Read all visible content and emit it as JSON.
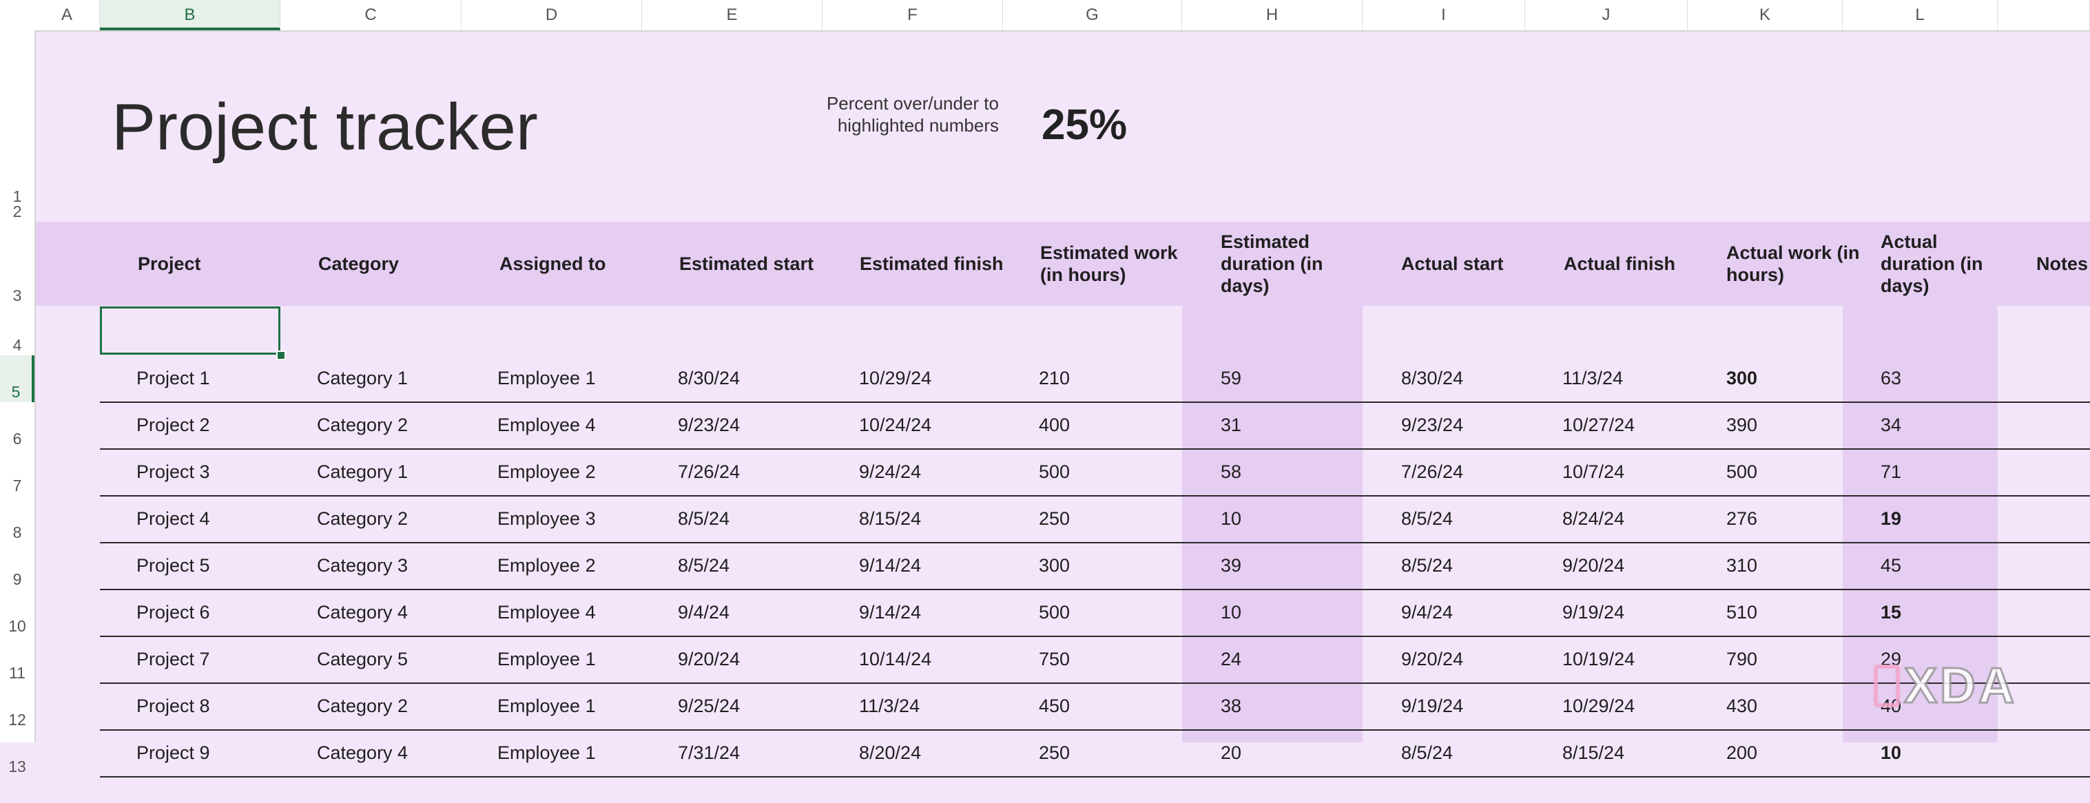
{
  "columns": [
    "A",
    "B",
    "C",
    "D",
    "E",
    "F",
    "G",
    "H",
    "I",
    "J",
    "K",
    "L"
  ],
  "selected_column": "B",
  "rows": [
    "1",
    "2",
    "3",
    "4",
    "5",
    "6",
    "7",
    "8",
    "9",
    "10",
    "11",
    "12",
    "13"
  ],
  "selected_row": "5",
  "title": "Project tracker",
  "percent_label": "Percent over/under to highlighted numbers",
  "percent_value": "25%",
  "table": {
    "headers": {
      "project": "Project",
      "category": "Category",
      "assigned": "Assigned to",
      "est_start": "Estimated start",
      "est_finish": "Estimated finish",
      "est_work": "Estimated work (in hours)",
      "est_duration": "Estimated duration (in days)",
      "act_start": "Actual start",
      "act_finish": "Actual finish",
      "act_work": "Actual work (in hours)",
      "act_duration": "Actual duration (in days)",
      "notes": "Notes"
    },
    "rows": [
      {
        "project": "Project 1",
        "category": "Category 1",
        "assigned": "Employee 1",
        "est_start": "8/30/24",
        "est_finish": "10/29/24",
        "est_work": "210",
        "est_duration": "59",
        "act_start": "8/30/24",
        "act_finish": "11/3/24",
        "act_work": "300",
        "act_duration": "63"
      },
      {
        "project": "Project 2",
        "category": "Category 2",
        "assigned": "Employee 4",
        "est_start": "9/23/24",
        "est_finish": "10/24/24",
        "est_work": "400",
        "est_duration": "31",
        "act_start": "9/23/24",
        "act_finish": "10/27/24",
        "act_work": "390",
        "act_duration": "34"
      },
      {
        "project": "Project 3",
        "category": "Category 1",
        "assigned": "Employee 2",
        "est_start": "7/26/24",
        "est_finish": "9/24/24",
        "est_work": "500",
        "est_duration": "58",
        "act_start": "7/26/24",
        "act_finish": "10/7/24",
        "act_work": "500",
        "act_duration": "71"
      },
      {
        "project": "Project 4",
        "category": "Category 2",
        "assigned": "Employee 3",
        "est_start": "8/5/24",
        "est_finish": "8/15/24",
        "est_work": "250",
        "est_duration": "10",
        "act_start": "8/5/24",
        "act_finish": "8/24/24",
        "act_work": "276",
        "act_duration": "19"
      },
      {
        "project": "Project 5",
        "category": "Category 3",
        "assigned": "Employee 2",
        "est_start": "8/5/24",
        "est_finish": "9/14/24",
        "est_work": "300",
        "est_duration": "39",
        "act_start": "8/5/24",
        "act_finish": "9/20/24",
        "act_work": "310",
        "act_duration": "45"
      },
      {
        "project": "Project 6",
        "category": "Category 4",
        "assigned": "Employee 4",
        "est_start": "9/4/24",
        "est_finish": "9/14/24",
        "est_work": "500",
        "est_duration": "10",
        "act_start": "9/4/24",
        "act_finish": "9/19/24",
        "act_work": "510",
        "act_duration": "15"
      },
      {
        "project": "Project 7",
        "category": "Category 5",
        "assigned": "Employee 1",
        "est_start": "9/20/24",
        "est_finish": "10/14/24",
        "est_work": "750",
        "est_duration": "24",
        "act_start": "9/20/24",
        "act_finish": "10/19/24",
        "act_work": "790",
        "act_duration": "29"
      },
      {
        "project": "Project 8",
        "category": "Category 2",
        "assigned": "Employee 1",
        "est_start": "9/25/24",
        "est_finish": "11/3/24",
        "est_work": "450",
        "est_duration": "38",
        "act_start": "9/19/24",
        "act_finish": "10/29/24",
        "act_work": "430",
        "act_duration": "40"
      },
      {
        "project": "Project 9",
        "category": "Category 4",
        "assigned": "Employee 1",
        "est_start": "7/31/24",
        "est_finish": "8/20/24",
        "est_work": "250",
        "est_duration": "20",
        "act_start": "8/5/24",
        "act_finish": "8/15/24",
        "act_work": "200",
        "act_duration": "10"
      }
    ],
    "highlighted": [
      {
        "row": 0,
        "key": "act_work"
      },
      {
        "row": 3,
        "key": "act_duration"
      },
      {
        "row": 5,
        "key": "act_duration"
      },
      {
        "row": 8,
        "key": "act_duration"
      }
    ]
  },
  "watermark": "XDA",
  "colors": {
    "background": "#f3e6fa",
    "header_band": "#e6cdf2",
    "selection": "#1d7144"
  }
}
